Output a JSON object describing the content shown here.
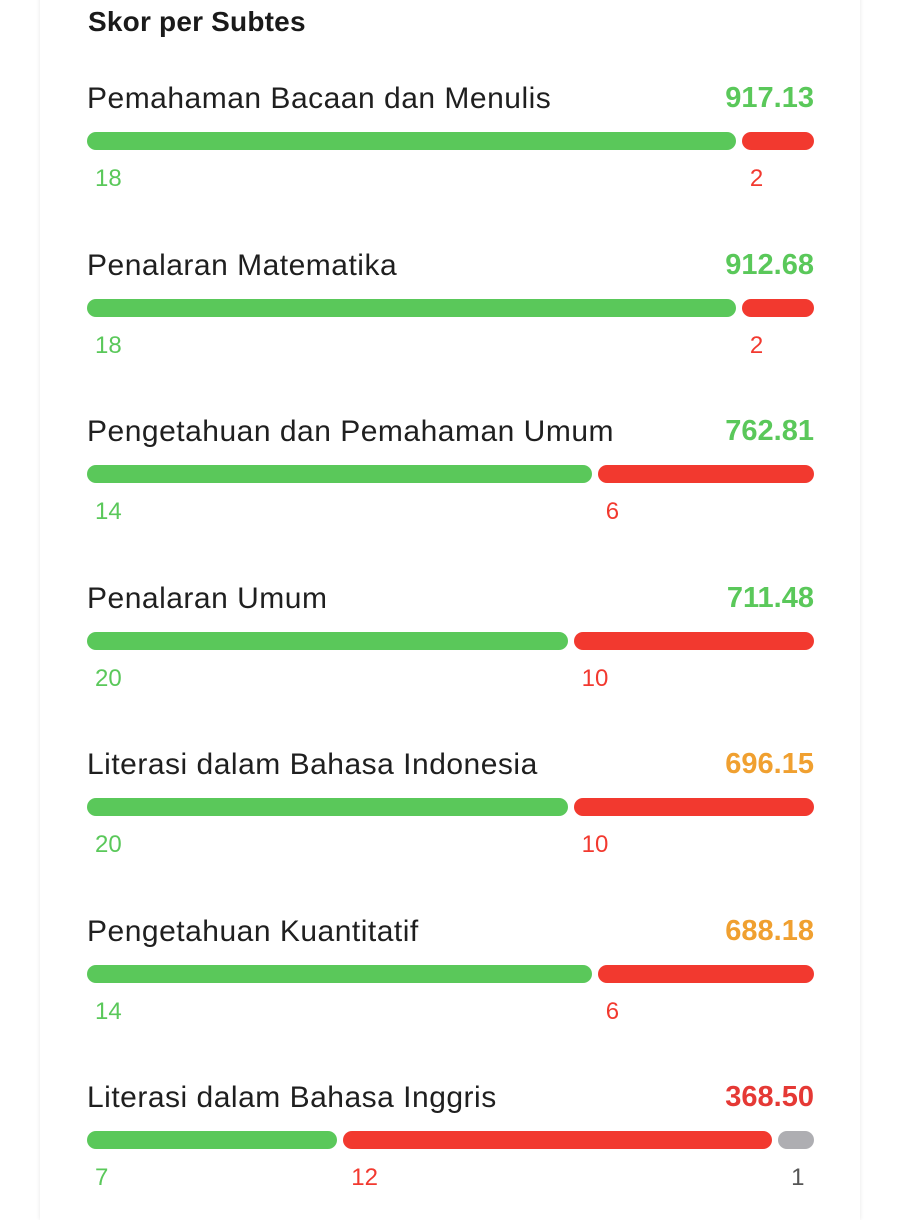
{
  "section_title": "Skor per Subtes",
  "colors": {
    "correct": "#5ac85a",
    "wrong": "#f2392f",
    "empty": "#aeaeb2",
    "score_high": "#5ac85a",
    "score_mid": "#f0a030",
    "score_low": "#e53935"
  },
  "subtests": [
    {
      "name": "Pemahaman Bacaan dan Menulis",
      "score": "917.13",
      "score_level": "high",
      "correct": 18,
      "wrong": 2,
      "empty": 0,
      "correct_label": "18",
      "wrong_label": "2",
      "empty_label": ""
    },
    {
      "name": "Penalaran Matematika",
      "score": "912.68",
      "score_level": "high",
      "correct": 18,
      "wrong": 2,
      "empty": 0,
      "correct_label": "18",
      "wrong_label": "2",
      "empty_label": ""
    },
    {
      "name": "Pengetahuan dan Pemahaman Umum",
      "score": "762.81",
      "score_level": "high",
      "correct": 14,
      "wrong": 6,
      "empty": 0,
      "correct_label": "14",
      "wrong_label": "6",
      "empty_label": ""
    },
    {
      "name": "Penalaran Umum",
      "score": "711.48",
      "score_level": "high",
      "correct": 20,
      "wrong": 10,
      "empty": 0,
      "correct_label": "20",
      "wrong_label": "10",
      "empty_label": ""
    },
    {
      "name": "Literasi dalam Bahasa Indonesia",
      "score": "696.15",
      "score_level": "mid",
      "correct": 20,
      "wrong": 10,
      "empty": 0,
      "correct_label": "20",
      "wrong_label": "10",
      "empty_label": ""
    },
    {
      "name": "Pengetahuan Kuantitatif",
      "score": "688.18",
      "score_level": "mid",
      "correct": 14,
      "wrong": 6,
      "empty": 0,
      "correct_label": "14",
      "wrong_label": "6",
      "empty_label": ""
    },
    {
      "name": "Literasi dalam Bahasa Inggris",
      "score": "368.50",
      "score_level": "low",
      "correct": 7,
      "wrong": 12,
      "empty": 1,
      "correct_label": "7",
      "wrong_label": "12",
      "empty_label": "1"
    }
  ]
}
